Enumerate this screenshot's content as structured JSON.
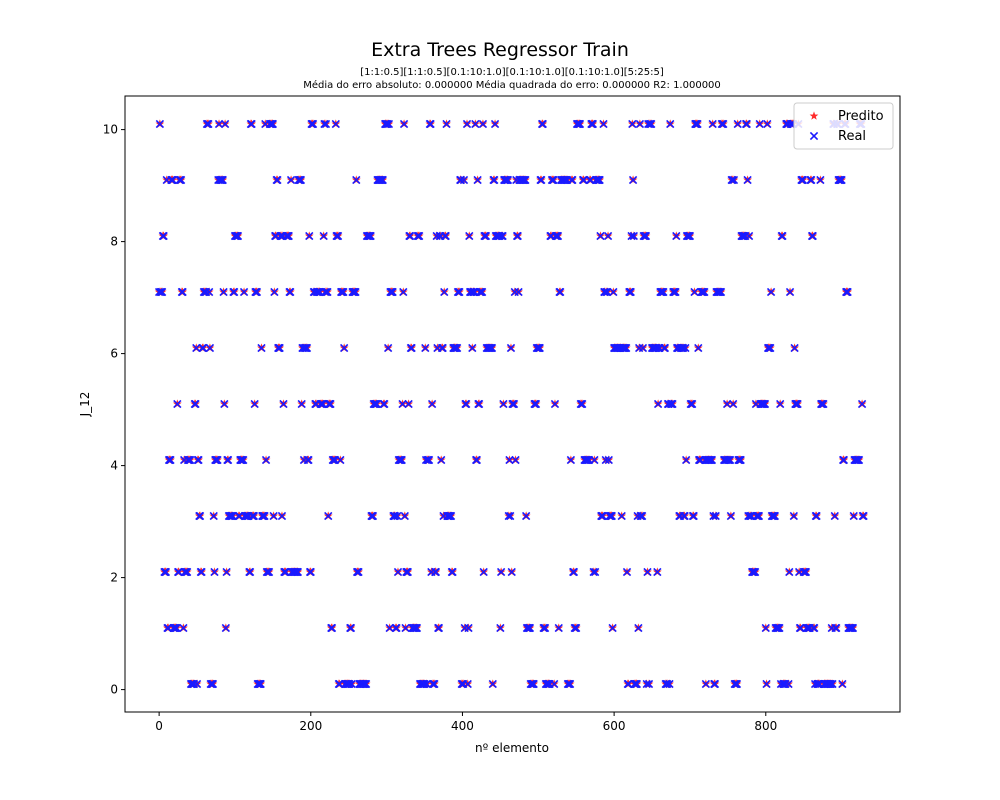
{
  "chart_data": {
    "type": "scatter",
    "title": "Extra Trees Regressor Train",
    "subtitle_lines": [
      "[1:1:0.5][1:1:0.5][0.1:10:1.0][0.1:10:1.0][0.1:10:1.0][5:25:5]",
      "Média do erro absoluto: 0.000000 Média quadrada do erro: 0.000000 R2: 1.000000"
    ],
    "xlabel": "nº elemento",
    "ylabel": "J_12",
    "xlim": [
      -45,
      977
    ],
    "ylim": [
      -0.4,
      10.6
    ],
    "xticks": [
      0,
      200,
      400,
      600,
      800
    ],
    "yticks": [
      0,
      2,
      4,
      6,
      8,
      10
    ],
    "legend_position": "top-right",
    "grid": false,
    "levels": [
      0.1,
      1.1,
      2.1,
      3.1,
      4.1,
      5.1,
      6.1,
      7.1,
      8.1,
      9.1,
      10.1
    ],
    "n_points": 930,
    "series": [
      {
        "name": "Predito",
        "marker": "star",
        "color": "#ff2b2b"
      },
      {
        "name": "Real",
        "marker": "x",
        "color": "#1a1aff"
      }
    ]
  }
}
